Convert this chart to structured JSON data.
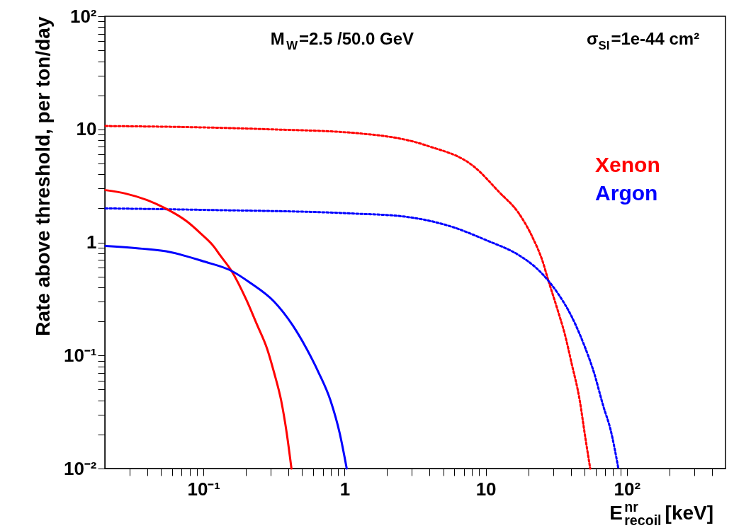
{
  "chart_data": {
    "type": "line",
    "xlabel": "E$^{nr}$$_{recoil}$ [keV]",
    "ylabel": "Rate above threshold, per ton/day",
    "annotations": [
      "M$_{W}$=2.5 /50.0 GeV",
      "σ$_{SI}$=1e-44 cm²"
    ],
    "log": "xy",
    "grid": false,
    "legend": "right",
    "marker": "none",
    "xlim": [
      0.02,
      500
    ],
    "ylim": [
      0.01,
      100
    ],
    "xticks": [
      {
        "value": 0.03,
        "label": null
      },
      {
        "value": 0.04,
        "label": null
      },
      {
        "value": 0.05,
        "label": null
      },
      {
        "value": 0.06,
        "label": null
      },
      {
        "value": 0.07,
        "label": null
      },
      {
        "value": 0.08,
        "label": null
      },
      {
        "value": 0.09,
        "label": null
      },
      {
        "value": 0.1,
        "label": "10⁻¹"
      },
      {
        "value": 0.2,
        "label": null
      },
      {
        "value": 0.3,
        "label": null
      },
      {
        "value": 0.4,
        "label": null
      },
      {
        "value": 0.5,
        "label": null
      },
      {
        "value": 0.6,
        "label": null
      },
      {
        "value": 0.7,
        "label": null
      },
      {
        "value": 0.8,
        "label": null
      },
      {
        "value": 0.9,
        "label": null
      },
      1,
      {
        "value": 2,
        "label": null
      },
      {
        "value": 3,
        "label": null
      },
      {
        "value": 4,
        "label": null
      },
      {
        "value": 5,
        "label": null
      },
      {
        "value": 6,
        "label": null
      },
      {
        "value": 7,
        "label": null
      },
      {
        "value": 8,
        "label": null
      },
      {
        "value": 9,
        "label": null
      },
      10,
      {
        "value": 20,
        "label": null
      },
      {
        "value": 30,
        "label": null
      },
      {
        "value": 40,
        "label": null
      },
      {
        "value": 50,
        "label": null
      },
      {
        "value": 60,
        "label": null
      },
      {
        "value": 70,
        "label": null
      },
      {
        "value": 80,
        "label": null
      },
      {
        "value": 90,
        "label": null
      },
      {
        "value": 100,
        "label": "10²"
      },
      {
        "value": 200,
        "label": null
      },
      {
        "value": 300,
        "label": null
      },
      {
        "value": 400,
        "label": null
      }
    ],
    "yticks": [
      {
        "value": 0.01,
        "label": "10⁻²"
      },
      {
        "value": 0.02,
        "label": null
      },
      {
        "value": 0.03,
        "label": null
      },
      {
        "value": 0.04,
        "label": null
      },
      {
        "value": 0.05,
        "label": null
      },
      {
        "value": 0.06,
        "label": null
      },
      {
        "value": 0.07,
        "label": null
      },
      {
        "value": 0.08,
        "label": null
      },
      {
        "value": 0.09,
        "label": null
      },
      {
        "value": 0.1,
        "label": "10⁻¹"
      },
      {
        "value": 0.2,
        "label": null
      },
      {
        "value": 0.3,
        "label": null
      },
      {
        "value": 0.4,
        "label": null
      },
      {
        "value": 0.5,
        "label": null
      },
      {
        "value": 0.6,
        "label": null
      },
      {
        "value": 0.7,
        "label": null
      },
      {
        "value": 0.8,
        "label": null
      },
      {
        "value": 0.9,
        "label": null
      },
      1,
      {
        "value": 2,
        "label": null
      },
      {
        "value": 3,
        "label": null
      },
      {
        "value": 4,
        "label": null
      },
      {
        "value": 5,
        "label": null
      },
      {
        "value": 6,
        "label": null
      },
      {
        "value": 7,
        "label": null
      },
      {
        "value": 8,
        "label": null
      },
      {
        "value": 9,
        "label": null
      },
      10,
      {
        "value": 20,
        "label": null
      },
      {
        "value": 30,
        "label": null
      },
      {
        "value": 40,
        "label": null
      },
      {
        "value": 50,
        "label": null
      },
      {
        "value": 60,
        "label": null
      },
      {
        "value": 70,
        "label": null
      },
      {
        "value": 80,
        "label": null
      },
      {
        "value": 90,
        "label": null
      },
      {
        "value": 100,
        "label": "10²"
      }
    ],
    "series": [
      {
        "name": "Xenon",
        "color": "#ff0000",
        "line_style": "dotted",
        "x": [
          0.0202,
          0.1,
          0.3,
          1.16,
          3.8,
          8.4,
          12.4,
          17.2,
          21.6,
          25.4,
          27.5,
          32.4,
          36.3,
          40.7,
          46.2,
          50.7,
          55
        ],
        "values": [
          10.7,
          10.4,
          10,
          9.3,
          7.2,
          4.6,
          2.8,
          1.8,
          1.09,
          0.67,
          0.48,
          0.25,
          0.155,
          0.084,
          0.041,
          0.019,
          0.01
        ]
      },
      {
        "name": "Argon",
        "color": "#0000ff",
        "line_style": "dotted",
        "x": [
          0.0202,
          0.1,
          1.16,
          2.57,
          5.6,
          10.2,
          17.2,
          22.6,
          25.4,
          32.4,
          40.7,
          49.5,
          58.2,
          68.4,
          76.7,
          87.1
        ],
        "values": [
          2.0,
          1.94,
          1.8,
          1.7,
          1.39,
          1.04,
          0.77,
          0.6,
          0.52,
          0.355,
          0.22,
          0.126,
          0.072,
          0.035,
          0.022,
          0.01
        ]
      },
      {
        "color": "#ff0000",
        "line_style": "solid",
        "x": [
          0.0202,
          0.0282,
          0.0398,
          0.0537,
          0.0759,
          0.0955,
          0.12,
          0.13,
          0.158,
          0.2,
          0.24,
          0.282,
          0.316,
          0.355,
          0.389,
          0.42
        ],
        "values": [
          2.9,
          2.7,
          2.37,
          2.0,
          1.54,
          1.2,
          0.9,
          0.78,
          0.56,
          0.316,
          0.186,
          0.115,
          0.071,
          0.04,
          0.0205,
          0.01
        ]
      },
      {
        "color": "#0000ff",
        "line_style": "solid",
        "x": [
          0.0202,
          0.0367,
          0.0582,
          0.1,
          0.158,
          0.214,
          0.316,
          0.427,
          0.537,
          0.653,
          0.794,
          0.923,
          1.035
        ],
        "values": [
          0.93,
          0.88,
          0.82,
          0.68,
          0.56,
          0.44,
          0.3,
          0.186,
          0.115,
          0.071,
          0.04,
          0.0205,
          0.01
        ]
      }
    ]
  }
}
